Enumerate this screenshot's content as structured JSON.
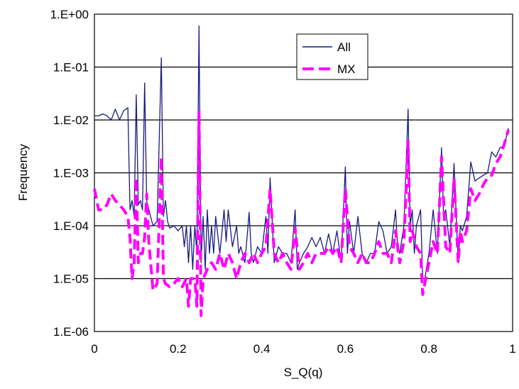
{
  "chart_data": {
    "type": "line",
    "title": "",
    "xlabel": "S_Q(q)",
    "ylabel": "Frequency",
    "xlim": [
      0,
      1
    ],
    "ylim": [
      1e-06,
      1
    ],
    "yscale": "log",
    "x_ticks": [
      "0",
      "0.2",
      "0.4",
      "0.6",
      "0.8",
      "1"
    ],
    "y_ticks": [
      "1.E+00",
      "1.E-01",
      "1.E-02",
      "1.E-03",
      "1.E-04",
      "1.E-05",
      "1.E-06"
    ],
    "grid": "horizontal",
    "legend_position": "top-right",
    "series": [
      {
        "name": "All",
        "color": "#1a1a80",
        "style": "solid",
        "points": [
          [
            0,
            0.012
          ],
          [
            0.01,
            0.012
          ],
          [
            0.02,
            0.013
          ],
          [
            0.03,
            0.012
          ],
          [
            0.04,
            0.01
          ],
          [
            0.05,
            0.016
          ],
          [
            0.06,
            0.01
          ],
          [
            0.07,
            0.015
          ],
          [
            0.08,
            0.017
          ],
          [
            0.085,
            0.0002
          ],
          [
            0.09,
            0.0003
          ],
          [
            0.095,
            0.00015
          ],
          [
            0.1,
            0.03
          ],
          [
            0.105,
            0.00025
          ],
          [
            0.11,
            0.0003
          ],
          [
            0.115,
            0.0002
          ],
          [
            0.12,
            0.05
          ],
          [
            0.125,
            0.0003
          ],
          [
            0.13,
            0.0002
          ],
          [
            0.14,
            0.0001
          ],
          [
            0.15,
            0.00012
          ],
          [
            0.16,
            0.15
          ],
          [
            0.165,
            0.00015
          ],
          [
            0.17,
            0.0003
          ],
          [
            0.175,
            0.00012
          ],
          [
            0.18,
            9e-05
          ],
          [
            0.19,
            0.0001
          ],
          [
            0.2,
            8e-05
          ],
          [
            0.21,
            0.0001
          ],
          [
            0.215,
            4e-05
          ],
          [
            0.22,
            0.0001
          ],
          [
            0.225,
            2e-05
          ],
          [
            0.23,
            0.0001
          ],
          [
            0.235,
            1.5e-05
          ],
          [
            0.24,
            0.0001
          ],
          [
            0.245,
            3e-05
          ],
          [
            0.25,
            0.6
          ],
          [
            0.255,
            2e-05
          ],
          [
            0.26,
            0.00015
          ],
          [
            0.265,
            1.5e-05
          ],
          [
            0.27,
            0.0002
          ],
          [
            0.275,
            3e-05
          ],
          [
            0.28,
            0.0001
          ],
          [
            0.285,
            3e-05
          ],
          [
            0.29,
            0.00015
          ],
          [
            0.3,
            3e-05
          ],
          [
            0.31,
            0.0002
          ],
          [
            0.315,
            5e-05
          ],
          [
            0.32,
            0.0002
          ],
          [
            0.33,
            4e-05
          ],
          [
            0.34,
            0.0001
          ],
          [
            0.345,
            3e-05
          ],
          [
            0.35,
            4e-05
          ],
          [
            0.36,
            2e-05
          ],
          [
            0.37,
            0.00018
          ],
          [
            0.375,
            3e-05
          ],
          [
            0.38,
            2e-05
          ],
          [
            0.39,
            4e-05
          ],
          [
            0.4,
            3e-05
          ],
          [
            0.41,
            0.00015
          ],
          [
            0.415,
            3e-05
          ],
          [
            0.42,
            0.0008
          ],
          [
            0.43,
            2e-05
          ],
          [
            0.44,
            4e-05
          ],
          [
            0.45,
            3e-05
          ],
          [
            0.46,
            3e-05
          ],
          [
            0.47,
            2e-05
          ],
          [
            0.48,
            0.0002
          ],
          [
            0.485,
            1.5e-05
          ],
          [
            0.49,
            2e-05
          ],
          [
            0.5,
            3e-05
          ],
          [
            0.51,
            4e-05
          ],
          [
            0.52,
            6e-05
          ],
          [
            0.53,
            4e-05
          ],
          [
            0.54,
            6e-05
          ],
          [
            0.55,
            3e-05
          ],
          [
            0.56,
            7e-05
          ],
          [
            0.57,
            3e-05
          ],
          [
            0.58,
            8e-05
          ],
          [
            0.59,
            2e-05
          ],
          [
            0.6,
            0.0013
          ],
          [
            0.605,
            3e-05
          ],
          [
            0.61,
            0.00012
          ],
          [
            0.62,
            3e-05
          ],
          [
            0.63,
            0.00015
          ],
          [
            0.64,
            3e-05
          ],
          [
            0.65,
            2e-05
          ],
          [
            0.66,
            3e-05
          ],
          [
            0.67,
            3e-05
          ],
          [
            0.68,
            0.00012
          ],
          [
            0.69,
            8e-05
          ],
          [
            0.7,
            3e-05
          ],
          [
            0.71,
            4e-05
          ],
          [
            0.72,
            0.0002
          ],
          [
            0.725,
            4e-05
          ],
          [
            0.73,
            3e-05
          ],
          [
            0.74,
            0.0001
          ],
          [
            0.75,
            0.016
          ],
          [
            0.755,
            0.0001
          ],
          [
            0.76,
            0.0002
          ],
          [
            0.765,
            3e-05
          ],
          [
            0.77,
            0.0001
          ],
          [
            0.78,
            0.0002
          ],
          [
            0.785,
            1e-05
          ],
          [
            0.79,
            1e-05
          ],
          [
            0.8,
            3e-05
          ],
          [
            0.81,
            0.0002
          ],
          [
            0.82,
            3e-05
          ],
          [
            0.83,
            0.003
          ],
          [
            0.835,
            0.00015
          ],
          [
            0.84,
            0.0002
          ],
          [
            0.85,
            4e-05
          ],
          [
            0.86,
            0.0015
          ],
          [
            0.87,
            2e-05
          ],
          [
            0.875,
            0.0001
          ],
          [
            0.88,
            8e-05
          ],
          [
            0.89,
            0.00015
          ],
          [
            0.9,
            0.0016
          ],
          [
            0.91,
            0.0007
          ],
          [
            0.92,
            0.0008
          ],
          [
            0.93,
            0.0009
          ],
          [
            0.94,
            0.001
          ],
          [
            0.95,
            0.0025
          ],
          [
            0.96,
            0.002
          ],
          [
            0.97,
            0.003
          ],
          [
            0.98,
            0.0032
          ],
          [
            0.99,
            0.007
          ]
        ]
      },
      {
        "name": "MX",
        "color": "#ff00ff",
        "style": "dashed",
        "points": [
          [
            0,
            0.0005
          ],
          [
            0.01,
            0.0002
          ],
          [
            0.02,
            0.0002
          ],
          [
            0.03,
            0.00025
          ],
          [
            0.04,
            0.0004
          ],
          [
            0.05,
            0.0003
          ],
          [
            0.06,
            0.00025
          ],
          [
            0.07,
            0.0002
          ],
          [
            0.08,
            0.00015
          ],
          [
            0.085,
            6e-05
          ],
          [
            0.09,
            1e-05
          ],
          [
            0.095,
            2e-05
          ],
          [
            0.1,
            0.0008
          ],
          [
            0.105,
            2e-05
          ],
          [
            0.11,
            3e-05
          ],
          [
            0.115,
            3e-05
          ],
          [
            0.12,
            6e-05
          ],
          [
            0.125,
            0.0004
          ],
          [
            0.13,
            5e-05
          ],
          [
            0.14,
            6e-06
          ],
          [
            0.15,
            8e-06
          ],
          [
            0.16,
            0.002
          ],
          [
            0.165,
            1e-05
          ],
          [
            0.17,
            8e-06
          ],
          [
            0.18,
            7e-06
          ],
          [
            0.19,
            8e-06
          ],
          [
            0.2,
            1e-05
          ],
          [
            0.21,
            7e-06
          ],
          [
            0.22,
            1e-05
          ],
          [
            0.225,
            3e-06
          ],
          [
            0.23,
            1e-05
          ],
          [
            0.24,
            1e-05
          ],
          [
            0.245,
            3e-06
          ],
          [
            0.25,
            0.015
          ],
          [
            0.255,
            2e-06
          ],
          [
            0.26,
            1e-05
          ],
          [
            0.27,
            1.5e-05
          ],
          [
            0.28,
            2e-05
          ],
          [
            0.29,
            1.5e-05
          ],
          [
            0.3,
            3e-05
          ],
          [
            0.31,
            1.5e-05
          ],
          [
            0.32,
            3e-05
          ],
          [
            0.33,
            2e-05
          ],
          [
            0.34,
            1e-05
          ],
          [
            0.35,
            2e-05
          ],
          [
            0.36,
            3e-05
          ],
          [
            0.37,
            2e-05
          ],
          [
            0.38,
            3e-05
          ],
          [
            0.39,
            2e-05
          ],
          [
            0.4,
            3e-05
          ],
          [
            0.41,
            4e-05
          ],
          [
            0.42,
            0.0005
          ],
          [
            0.43,
            3e-05
          ],
          [
            0.44,
            2e-05
          ],
          [
            0.45,
            3e-05
          ],
          [
            0.46,
            2e-05
          ],
          [
            0.47,
            1.5e-05
          ],
          [
            0.48,
            9e-05
          ],
          [
            0.49,
            1.5e-05
          ],
          [
            0.5,
            2e-05
          ],
          [
            0.51,
            3e-05
          ],
          [
            0.52,
            2e-05
          ],
          [
            0.53,
            3e-05
          ],
          [
            0.54,
            3e-05
          ],
          [
            0.55,
            3e-05
          ],
          [
            0.56,
            4e-05
          ],
          [
            0.57,
            3e-05
          ],
          [
            0.58,
            4e-05
          ],
          [
            0.59,
            2e-05
          ],
          [
            0.6,
            0.0005
          ],
          [
            0.61,
            4e-05
          ],
          [
            0.62,
            3e-05
          ],
          [
            0.63,
            2e-05
          ],
          [
            0.64,
            3e-05
          ],
          [
            0.65,
            2e-05
          ],
          [
            0.66,
            2e-05
          ],
          [
            0.67,
            3e-05
          ],
          [
            0.68,
            5e-05
          ],
          [
            0.69,
            3e-05
          ],
          [
            0.7,
            3e-05
          ],
          [
            0.71,
            2e-05
          ],
          [
            0.72,
            8e-05
          ],
          [
            0.73,
            2e-05
          ],
          [
            0.74,
            5e-05
          ],
          [
            0.75,
            0.004
          ],
          [
            0.755,
            5e-05
          ],
          [
            0.76,
            8e-05
          ],
          [
            0.77,
            4e-05
          ],
          [
            0.78,
            3e-05
          ],
          [
            0.785,
            5e-06
          ],
          [
            0.79,
            8e-06
          ],
          [
            0.8,
            2e-05
          ],
          [
            0.81,
            5e-05
          ],
          [
            0.82,
            3e-05
          ],
          [
            0.83,
            0.002
          ],
          [
            0.84,
            4e-05
          ],
          [
            0.85,
            3e-05
          ],
          [
            0.86,
            0.0008
          ],
          [
            0.87,
            2e-05
          ],
          [
            0.875,
            8e-05
          ],
          [
            0.88,
            5e-05
          ],
          [
            0.89,
            8e-05
          ],
          [
            0.9,
            0.0005
          ],
          [
            0.91,
            0.0003
          ],
          [
            0.92,
            0.0004
          ],
          [
            0.93,
            0.0006
          ],
          [
            0.94,
            0.0008
          ],
          [
            0.95,
            0.0009
          ],
          [
            0.96,
            0.0015
          ],
          [
            0.97,
            0.002
          ],
          [
            0.98,
            0.0035
          ],
          [
            0.99,
            0.0065
          ]
        ]
      }
    ]
  }
}
